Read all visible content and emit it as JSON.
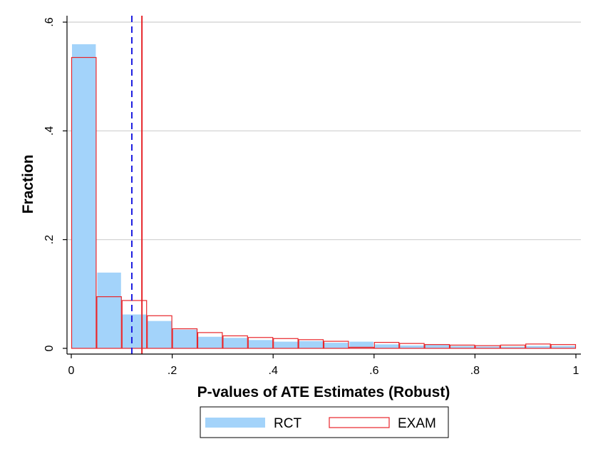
{
  "chart_data": {
    "type": "bar",
    "xlabel": "P-values of ATE Estimates (Robust)",
    "ylabel": "Fraction",
    "xlim": [
      0,
      1
    ],
    "ylim": [
      0,
      0.6
    ],
    "bin_width": 0.05,
    "bin_starts": [
      0,
      0.05,
      0.1,
      0.15,
      0.2,
      0.25,
      0.3,
      0.35,
      0.4,
      0.45,
      0.5,
      0.55,
      0.6,
      0.65,
      0.7,
      0.75,
      0.8,
      0.85,
      0.9,
      0.95
    ],
    "x_ticks": [
      0,
      0.2,
      0.4,
      0.6,
      0.8,
      1
    ],
    "x_tick_labels": [
      "0",
      ".2",
      ".4",
      ".6",
      ".8",
      "1"
    ],
    "y_ticks": [
      0,
      0.2,
      0.4,
      0.6
    ],
    "y_tick_labels": [
      "0",
      ".2",
      ".4",
      ".6"
    ],
    "grid": true,
    "legend_position": "bottom",
    "series": [
      {
        "name": "RCT",
        "style": "filled",
        "color": "#a3d3fa",
        "values": [
          0.56,
          0.14,
          0.063,
          0.051,
          0.035,
          0.022,
          0.02,
          0.016,
          0.013,
          0.014,
          0.011,
          0.013,
          0.008,
          0.006,
          0.007,
          0.005,
          0.004,
          0.004,
          0.005,
          0.005
        ]
      },
      {
        "name": "EXAM",
        "style": "outline",
        "color": "#e8262b",
        "values": [
          0.535,
          0.095,
          0.088,
          0.06,
          0.036,
          0.029,
          0.023,
          0.02,
          0.018,
          0.016,
          0.013,
          0.002,
          0.011,
          0.009,
          0.007,
          0.006,
          0.005,
          0.006,
          0.008,
          0.007
        ]
      }
    ],
    "reference_lines": [
      {
        "x": 0.12,
        "color": "#1c1ce0",
        "style": "dashed"
      },
      {
        "x": 0.14,
        "color": "#e8262b",
        "style": "solid"
      }
    ]
  }
}
